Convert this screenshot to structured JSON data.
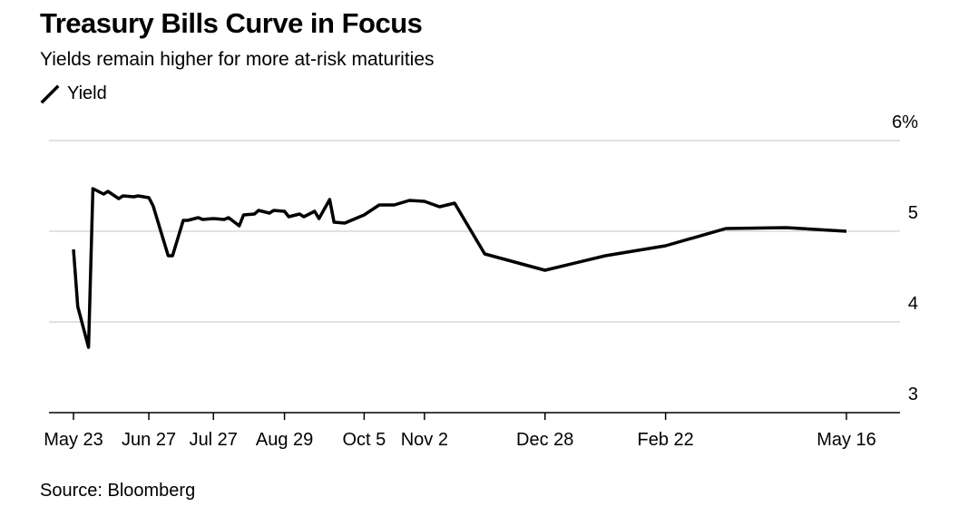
{
  "chart_data": {
    "type": "line",
    "title": "Treasury Bills Curve in Focus",
    "subtitle": "Yields remain higher for more at-risk maturities",
    "legend": [
      {
        "name": "Yield",
        "color": "#000000"
      }
    ],
    "source": "Source: Bloomberg",
    "xlabel": "",
    "ylabel": "",
    "ylim": [
      3,
      6
    ],
    "y_ticks": [
      {
        "value": 6,
        "label": "6%"
      },
      {
        "value": 5,
        "label": "5"
      },
      {
        "value": 4,
        "label": "4"
      },
      {
        "value": 3,
        "label": "3"
      }
    ],
    "x_domain": [
      "2023-05-23",
      "2024-05-16"
    ],
    "x_ticks": [
      {
        "date": "2023-05-23",
        "label": "May 23"
      },
      {
        "date": "2023-06-27",
        "label": "Jun 27"
      },
      {
        "date": "2023-07-27",
        "label": "Jul 27"
      },
      {
        "date": "2023-08-29",
        "label": "Aug 29"
      },
      {
        "date": "2023-10-05",
        "label": "Oct 5"
      },
      {
        "date": "2023-11-02",
        "label": "Nov 2"
      },
      {
        "date": "2023-12-28",
        "label": "Dec 28"
      },
      {
        "date": "2024-02-22",
        "label": "Feb 22"
      },
      {
        "date": "2024-05-16",
        "label": "May 16"
      }
    ],
    "series": [
      {
        "name": "Yield",
        "color": "#000000",
        "points": [
          [
            "2023-05-23",
            4.8
          ],
          [
            "2023-05-25",
            4.17
          ],
          [
            "2023-05-30",
            3.72
          ],
          [
            "2023-06-01",
            5.47
          ],
          [
            "2023-06-06",
            5.41
          ],
          [
            "2023-06-08",
            5.44
          ],
          [
            "2023-06-13",
            5.36
          ],
          [
            "2023-06-15",
            5.39
          ],
          [
            "2023-06-20",
            5.38
          ],
          [
            "2023-06-22",
            5.39
          ],
          [
            "2023-06-27",
            5.37
          ],
          [
            "2023-06-29",
            5.28
          ],
          [
            "2023-07-06",
            4.73
          ],
          [
            "2023-07-08",
            4.73
          ],
          [
            "2023-07-13",
            5.12
          ],
          [
            "2023-07-15",
            5.12
          ],
          [
            "2023-07-20",
            5.15
          ],
          [
            "2023-07-22",
            5.13
          ],
          [
            "2023-07-27",
            5.14
          ],
          [
            "2023-08-01",
            5.13
          ],
          [
            "2023-08-03",
            5.15
          ],
          [
            "2023-08-08",
            5.06
          ],
          [
            "2023-08-10",
            5.18
          ],
          [
            "2023-08-15",
            5.19
          ],
          [
            "2023-08-17",
            5.23
          ],
          [
            "2023-08-22",
            5.2
          ],
          [
            "2023-08-24",
            5.23
          ],
          [
            "2023-08-29",
            5.22
          ],
          [
            "2023-08-31",
            5.16
          ],
          [
            "2023-09-05",
            5.19
          ],
          [
            "2023-09-07",
            5.16
          ],
          [
            "2023-09-12",
            5.22
          ],
          [
            "2023-09-14",
            5.14
          ],
          [
            "2023-09-19",
            5.35
          ],
          [
            "2023-09-21",
            5.1
          ],
          [
            "2023-09-26",
            5.09
          ],
          [
            "2023-10-05",
            5.18
          ],
          [
            "2023-10-12",
            5.29
          ],
          [
            "2023-10-19",
            5.29
          ],
          [
            "2023-10-26",
            5.34
          ],
          [
            "2023-11-02",
            5.33
          ],
          [
            "2023-11-09",
            5.27
          ],
          [
            "2023-11-16",
            5.31
          ],
          [
            "2023-11-30",
            4.75
          ],
          [
            "2023-12-28",
            4.57
          ],
          [
            "2024-01-25",
            4.73
          ],
          [
            "2024-02-22",
            4.84
          ],
          [
            "2024-03-21",
            5.03
          ],
          [
            "2024-04-18",
            5.04
          ],
          [
            "2024-05-16",
            5.0
          ]
        ]
      }
    ]
  }
}
